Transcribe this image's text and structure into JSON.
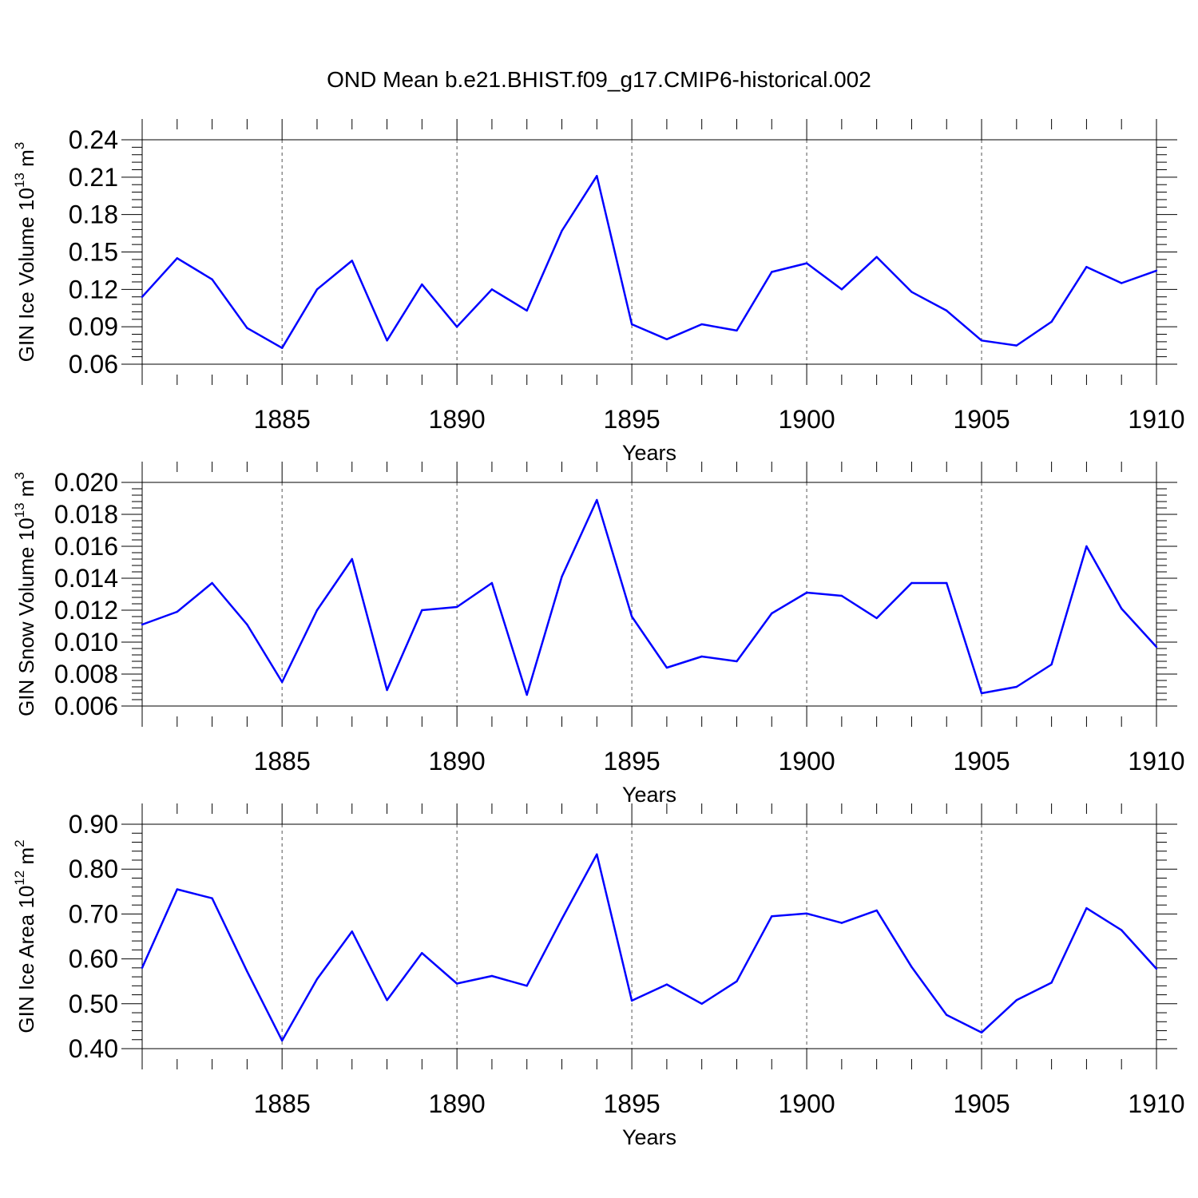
{
  "title": "OND Mean b.e21.BHIST.f09_g17.CMIP6-historical.002",
  "chart_data": [
    {
      "type": "line",
      "id": "ice-volume",
      "title": "",
      "xlabel": "Years",
      "ylabel": "GIN Ice Volume 10",
      "ylabel_exp": "13",
      "ylabel_unit": " m",
      "ylabel_unit_exp": "3",
      "xlim": [
        1881,
        1910
      ],
      "ylim": [
        0.06,
        0.24
      ],
      "xticks": [
        1885,
        1890,
        1895,
        1900,
        1905,
        1910
      ],
      "yticks": [
        0.06,
        0.09,
        0.12,
        0.15,
        0.18,
        0.21,
        0.24
      ],
      "ytick_labels": [
        "0.06",
        "0.09",
        "0.12",
        "0.15",
        "0.18",
        "0.21",
        "0.24"
      ],
      "grid": "vertical-dashed",
      "line_color": "#0000ff",
      "x": [
        1881,
        1882,
        1883,
        1884,
        1885,
        1886,
        1887,
        1888,
        1889,
        1890,
        1891,
        1892,
        1893,
        1894,
        1895,
        1896,
        1897,
        1898,
        1899,
        1900,
        1901,
        1902,
        1903,
        1904,
        1905,
        1906,
        1907,
        1908,
        1909,
        1910
      ],
      "values": [
        0.114,
        0.145,
        0.128,
        0.089,
        0.073,
        0.12,
        0.143,
        0.079,
        0.124,
        0.09,
        0.12,
        0.103,
        0.167,
        0.211,
        0.092,
        0.08,
        0.092,
        0.087,
        0.134,
        0.141,
        0.12,
        0.146,
        0.118,
        0.103,
        0.079,
        0.075,
        0.094,
        0.138,
        0.125,
        0.135
      ]
    },
    {
      "type": "line",
      "id": "snow-volume",
      "title": "",
      "xlabel": "Years",
      "ylabel": "GIN Snow Volume 10",
      "ylabel_exp": "13",
      "ylabel_unit": " m",
      "ylabel_unit_exp": "3",
      "xlim": [
        1881,
        1910
      ],
      "ylim": [
        0.006,
        0.02
      ],
      "xticks": [
        1885,
        1890,
        1895,
        1900,
        1905,
        1910
      ],
      "yticks": [
        0.006,
        0.008,
        0.01,
        0.012,
        0.014,
        0.016,
        0.018,
        0.02
      ],
      "ytick_labels": [
        "0.006",
        "0.008",
        "0.010",
        "0.012",
        "0.014",
        "0.016",
        "0.018",
        "0.020"
      ],
      "grid": "vertical-dashed",
      "line_color": "#0000ff",
      "x": [
        1881,
        1882,
        1883,
        1884,
        1885,
        1886,
        1887,
        1888,
        1889,
        1890,
        1891,
        1892,
        1893,
        1894,
        1895,
        1896,
        1897,
        1898,
        1899,
        1900,
        1901,
        1902,
        1903,
        1904,
        1905,
        1906,
        1907,
        1908,
        1909,
        1910
      ],
      "values": [
        0.0111,
        0.0119,
        0.0137,
        0.0111,
        0.0075,
        0.012,
        0.0152,
        0.007,
        0.012,
        0.0122,
        0.0137,
        0.0067,
        0.0141,
        0.0189,
        0.0116,
        0.0084,
        0.0091,
        0.0088,
        0.0118,
        0.0131,
        0.0129,
        0.0115,
        0.0137,
        0.0137,
        0.0068,
        0.0072,
        0.0086,
        0.016,
        0.0121,
        0.0097
      ]
    },
    {
      "type": "line",
      "id": "ice-area",
      "title": "",
      "xlabel": "Years",
      "ylabel": "GIN Ice Area 10",
      "ylabel_exp": "12",
      "ylabel_unit": " m",
      "ylabel_unit_exp": "2",
      "xlim": [
        1881,
        1910
      ],
      "ylim": [
        0.4,
        0.9
      ],
      "xticks": [
        1885,
        1890,
        1895,
        1900,
        1905,
        1910
      ],
      "yticks": [
        0.4,
        0.5,
        0.6,
        0.7,
        0.8,
        0.9
      ],
      "ytick_labels": [
        "0.40",
        "0.50",
        "0.60",
        "0.70",
        "0.80",
        "0.90"
      ],
      "grid": "vertical-dashed",
      "line_color": "#0000ff",
      "x": [
        1881,
        1882,
        1883,
        1884,
        1885,
        1886,
        1887,
        1888,
        1889,
        1890,
        1891,
        1892,
        1893,
        1894,
        1895,
        1896,
        1897,
        1898,
        1899,
        1900,
        1901,
        1902,
        1903,
        1904,
        1905,
        1906,
        1907,
        1908,
        1909,
        1910
      ],
      "values": [
        0.58,
        0.755,
        0.735,
        0.572,
        0.418,
        0.555,
        0.661,
        0.508,
        0.613,
        0.545,
        0.562,
        0.54,
        0.689,
        0.833,
        0.507,
        0.543,
        0.5,
        0.55,
        0.695,
        0.701,
        0.68,
        0.708,
        0.582,
        0.475,
        0.436,
        0.508,
        0.547,
        0.713,
        0.664,
        0.578
      ]
    }
  ]
}
